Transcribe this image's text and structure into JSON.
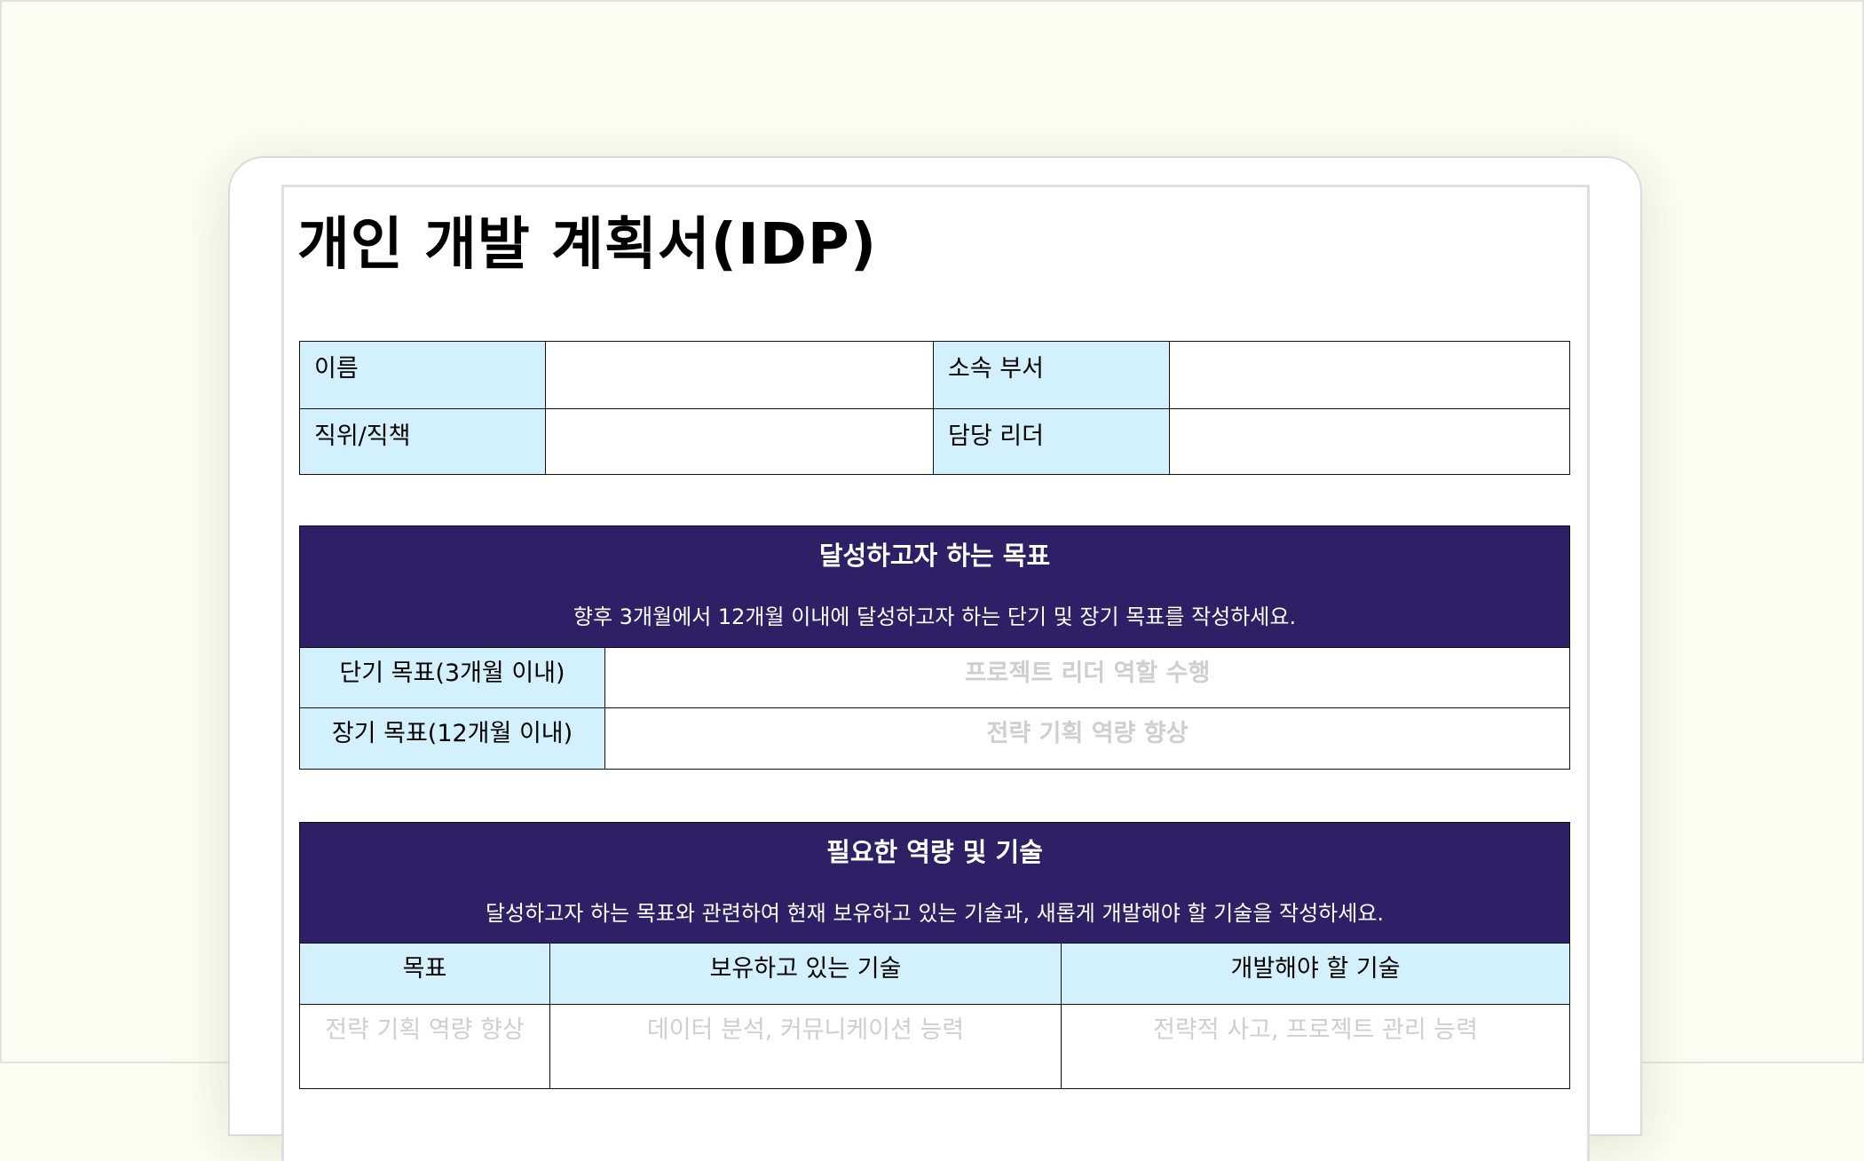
{
  "document": {
    "title": "개인 개발 계획서(IDP)",
    "info_table": {
      "name_label": "이름",
      "department_label": "소속 부서",
      "position_label": "직위/직책",
      "leader_label": "담당 리더"
    },
    "goals_section": {
      "heading": "달성하고자 하는 목표",
      "description": "향후 3개월에서 12개월 이내에 달성하고자 하는 단기 및 장기 목표를 작성하세요.",
      "rows": [
        {
          "label": "단기 목표(3개월 이내)",
          "placeholder": "프로젝트 리더 역할 수행"
        },
        {
          "label": "장기 목표(12개월 이내)",
          "placeholder": "전략 기획 역량 향상"
        }
      ]
    },
    "skills_section": {
      "heading": "필요한 역량 및 기술",
      "description": "달성하고자 하는 목표와 관련하여 현재 보유하고 있는 기술과, 새롭게 개발해야 할 기술을 작성하세요.",
      "columns": [
        "목표",
        "보유하고 있는 기술",
        "개발해야 할 기술"
      ],
      "rows": [
        [
          "전략 기획 역량 향상",
          "데이터 분석, 커뮤니케이션 능력",
          "전략적 사고, 프로젝트 관리 능력"
        ]
      ]
    },
    "colors": {
      "header_bg": "#2f1f66",
      "label_bg": "#d3f1fc",
      "page_bg": "#fdfdf1"
    }
  }
}
